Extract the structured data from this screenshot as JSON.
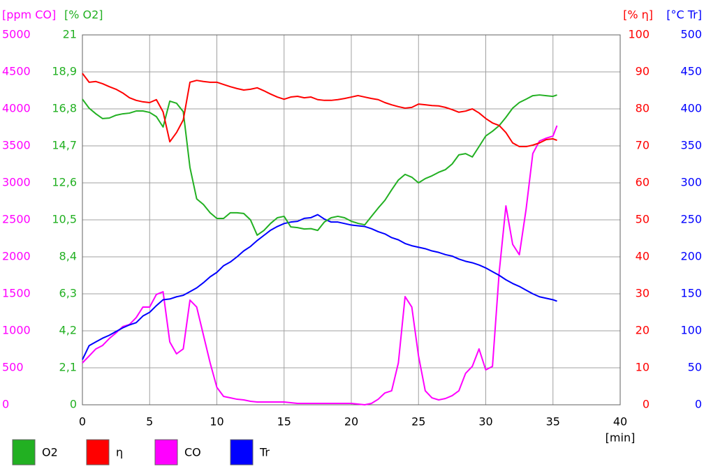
{
  "chart_data": {
    "type": "line",
    "xlabel": "[min]",
    "y_label": "[ppm CO]",
    "y2_label": "[% O2]",
    "y3_label": "[% η]",
    "y4_label": "[°C Tr]",
    "x": [
      0,
      0.5,
      1,
      1.5,
      2,
      2.5,
      3,
      3.5,
      4,
      4.5,
      5,
      5.5,
      6,
      6.5,
      7,
      7.5,
      8,
      8.5,
      9,
      9.5,
      10,
      10.5,
      11,
      11.5,
      12,
      12.5,
      13,
      13.5,
      14,
      14.5,
      15,
      15.5,
      16,
      16.5,
      17,
      17.5,
      18,
      18.5,
      19,
      19.5,
      20,
      20.5,
      21,
      21.5,
      22,
      22.5,
      23,
      23.5,
      24,
      24.5,
      25,
      25.5,
      26,
      26.5,
      27,
      27.5,
      28,
      28.5,
      29,
      29.5,
      30,
      30.5,
      31,
      31.5,
      32,
      32.5,
      33,
      33.5,
      34,
      34.5,
      35,
      35.3
    ],
    "xlim": [
      0,
      40
    ],
    "xticks": [
      0,
      5,
      10,
      15,
      20,
      25,
      30,
      35,
      40
    ],
    "ylim": [
      0,
      5000
    ],
    "yticks": [
      0,
      500,
      1000,
      1500,
      2000,
      2500,
      3000,
      3500,
      4000,
      4500,
      5000
    ],
    "y_color": "#ff00ff",
    "y2lim": [
      0,
      21
    ],
    "y2ticks": [
      0,
      {
        "value": 2.1,
        "label": "2,1"
      },
      {
        "value": 4.2,
        "label": "4,2"
      },
      {
        "value": 6.3,
        "label": "6,3"
      },
      {
        "value": 8.4,
        "label": "8,4"
      },
      {
        "value": 10.5,
        "label": "10,5"
      },
      {
        "value": 12.6,
        "label": "12,6"
      },
      {
        "value": 14.7,
        "label": "14,7"
      },
      {
        "value": 16.8,
        "label": "16,8"
      },
      {
        "value": 18.9,
        "label": "18,9"
      },
      21
    ],
    "y2_color": "#22b022",
    "y3lim": [
      0,
      100
    ],
    "y3ticks": [
      0,
      10,
      20,
      30,
      40,
      50,
      60,
      70,
      80,
      90,
      100
    ],
    "y3_color": "#ff0000",
    "y4lim": [
      0,
      500
    ],
    "y4ticks": [
      0,
      50,
      100,
      150,
      200,
      250,
      300,
      350,
      400,
      450,
      500
    ],
    "y4_color": "#0000ff",
    "grid": true,
    "series": [
      {
        "name": "O2",
        "color": "#22b022",
        "axis": "y2",
        "values": [
          17.35,
          16.84,
          16.52,
          16.25,
          16.28,
          16.44,
          16.52,
          16.56,
          16.68,
          16.68,
          16.6,
          16.36,
          15.77,
          17.24,
          17.12,
          16.64,
          13.47,
          11.69,
          11.37,
          10.9,
          10.58,
          10.58,
          10.9,
          10.9,
          10.86,
          10.5,
          9.63,
          9.9,
          10.3,
          10.62,
          10.7,
          10.1,
          10.06,
          9.98,
          10.0,
          9.9,
          10.38,
          10.62,
          10.7,
          10.62,
          10.42,
          10.3,
          10.22,
          10.7,
          11.17,
          11.61,
          12.2,
          12.76,
          13.08,
          12.92,
          12.6,
          12.84,
          13.0,
          13.2,
          13.35,
          13.67,
          14.19,
          14.26,
          14.07,
          14.66,
          15.26,
          15.53,
          15.85,
          16.32,
          16.84,
          17.16,
          17.35,
          17.55,
          17.59,
          17.55,
          17.51,
          17.59
        ]
      },
      {
        "name": "η",
        "color": "#ff0000",
        "axis": "y3",
        "values": [
          89.6,
          87.2,
          87.4,
          86.8,
          86.0,
          85.3,
          84.3,
          83.0,
          82.3,
          81.9,
          81.7,
          82.5,
          79.2,
          71.1,
          73.6,
          77.0,
          87.2,
          87.7,
          87.4,
          87.2,
          87.2,
          86.6,
          86.0,
          85.5,
          85.1,
          85.3,
          85.7,
          84.9,
          84.0,
          83.2,
          82.6,
          83.2,
          83.4,
          83.0,
          83.2,
          82.5,
          82.3,
          82.3,
          82.5,
          82.8,
          83.2,
          83.6,
          83.2,
          82.8,
          82.5,
          81.7,
          81.1,
          80.6,
          80.2,
          80.4,
          81.3,
          81.1,
          80.9,
          80.8,
          80.4,
          79.8,
          79.1,
          79.4,
          80.0,
          78.9,
          77.4,
          76.2,
          75.5,
          73.6,
          70.8,
          69.8,
          69.8,
          70.2,
          70.8,
          71.7,
          71.9,
          71.5
        ]
      },
      {
        "name": "CO",
        "color": "#ff00ff",
        "axis": "y",
        "values": [
          566,
          660,
          755,
          802,
          896,
          972,
          1057,
          1085,
          1179,
          1321,
          1321,
          1491,
          1528,
          849,
          689,
          755,
          1415,
          1321,
          943,
          566,
          236,
          113,
          94,
          75,
          66,
          47,
          38,
          38,
          38,
          38,
          38,
          28,
          19,
          19,
          19,
          19,
          19,
          19,
          19,
          19,
          19,
          9,
          0,
          19,
          75,
          160,
          189,
          566,
          1462,
          1321,
          660,
          189,
          94,
          66,
          85,
          123,
          189,
          425,
          519,
          755,
          472,
          519,
          1792,
          2689,
          2170,
          2028,
          2642,
          3396,
          3566,
          3604,
          3632,
          3774
        ]
      },
      {
        "name": "Tr",
        "color": "#0000ff",
        "axis": "y4",
        "values": [
          61,
          80,
          85,
          90,
          94,
          99,
          104,
          108,
          111,
          120,
          125,
          134,
          142,
          143,
          146,
          148,
          153,
          158,
          165,
          173,
          179,
          188,
          193,
          200,
          208,
          214,
          222,
          229,
          236,
          241,
          245,
          247,
          248,
          252,
          253,
          257,
          251,
          247,
          247,
          245,
          243,
          242,
          241,
          238,
          234,
          231,
          226,
          223,
          218,
          215,
          213,
          211,
          208,
          206,
          203,
          201,
          197,
          194,
          192,
          189,
          185,
          180,
          175,
          169,
          164,
          160,
          155,
          150,
          146,
          144,
          142,
          140
        ]
      }
    ]
  }
}
